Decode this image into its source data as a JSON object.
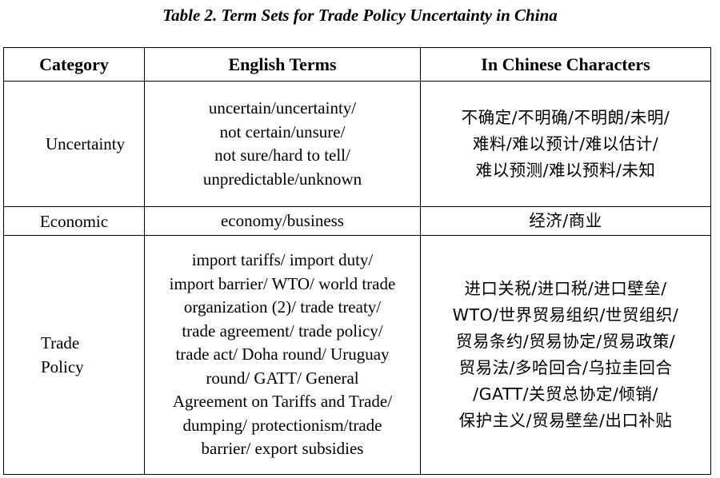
{
  "caption": "Table 2. Term Sets for Trade Policy  Uncertainty in China",
  "table": {
    "headers": [
      "Category",
      "English Terms",
      "In Chinese Characters"
    ],
    "rows": [
      {
        "category": [
          "Uncertainty"
        ],
        "english": [
          "uncertain/uncertainty/",
          "not certain/unsure/",
          "not sure/hard to tell/",
          "unpredictable/unknown"
        ],
        "chinese": [
          "不确定/不明确/不明朗/未明/",
          "难料/难以预计/难以估计/",
          "难以预测/难以预料/未知"
        ]
      },
      {
        "category": [
          "Economic"
        ],
        "english": [
          "economy/business"
        ],
        "chinese": [
          "经济/商业"
        ]
      },
      {
        "category": [
          "Trade",
          "Policy"
        ],
        "english": [
          "import tariffs/ import duty/",
          "import barrier/ WTO/ world trade",
          "organization (2)/ trade treaty/",
          "trade agreement/ trade policy/",
          "trade act/ Doha round/ Uruguay",
          "round/ GATT/ General",
          "Agreement on Tariffs and Trade/",
          "dumping/ protectionism/trade",
          "barrier/ export subsidies"
        ],
        "chinese": [
          "进口关税/进口税/进口壁垒/",
          "WTO/世界贸易组织/世贸组织/",
          "贸易条约/贸易协定/贸易政策/",
          "贸易法/多哈回合/乌拉圭回合",
          "/GATT/关贸总协定/倾销/",
          "保护主义/贸易壁垒/出口补贴"
        ]
      }
    ]
  }
}
